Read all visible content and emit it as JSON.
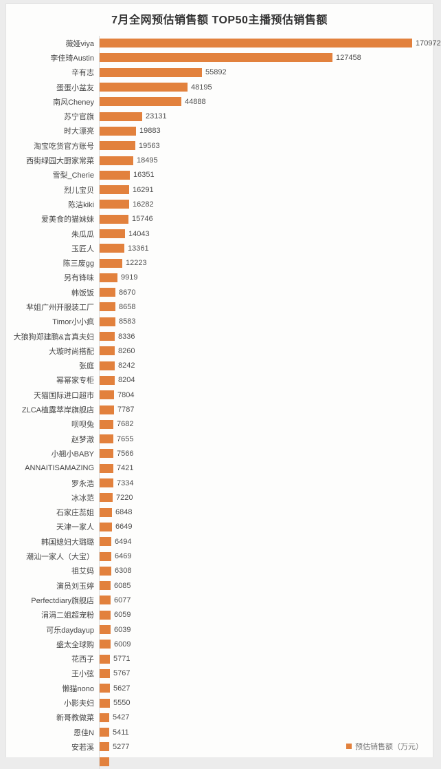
{
  "chart_data": {
    "type": "bar",
    "orientation": "horizontal",
    "title": "7月全网预估销售额 TOP50主播预估销售额",
    "legend": "预估销售额（万元）",
    "legend_position": "bottom-right",
    "unit": "万元",
    "bar_color": "#e2813d",
    "value_labels": "outside-end",
    "grid": false,
    "xlim": [
      0,
      175000
    ],
    "note_visible": "50th bar partially cut off at bottom edge",
    "categories": [
      "薇娅viya",
      "李佳琦Austin",
      "辛有志",
      "蛋蛋小盆友",
      "南风Cheney",
      "苏宁官旗",
      "时大漂亮",
      "淘宝吃货官方账号",
      "西街绿园大厨家常菜",
      "雪梨_Cherie",
      "烈儿宝贝",
      "陈洁kiki",
      "爱美食的猫妹妹",
      "朱瓜瓜",
      "玉匠人",
      "陈三废gg",
      "另有锋味",
      "韩饭饭",
      "芈姐广州开服装工厂",
      "Timor小小疯",
      "大狼狗郑建鹏&言真夫妇",
      "大璇时尚搭配",
      "张庭",
      "幂幂家专柜",
      "天猫国际进口超市",
      "ZLCA植露萃岸旗舰店",
      "呗呗兔",
      "赵梦澈",
      "小翘小BABY",
      "ANNAITISAMAZING",
      "罗永浩",
      "冰冰范",
      "石家庄蕊姐",
      "天津一家人",
      "韩国媳妇大璐璐",
      "潮汕一家人（大宝）",
      "祖艾妈",
      "演员刘玉婷",
      "Perfectdiary旗舰店",
      "涓涓二姐超宠粉",
      "可乐daydayup",
      "盛太全球购",
      "花西子",
      "王小弦",
      "懒猫nono",
      "小影夫妇",
      "新哥教做菜",
      "恩佳N",
      "安若溪"
    ],
    "values": [
      170972,
      127458,
      55892,
      48195,
      44888,
      23131,
      19883,
      19563,
      18495,
      16351,
      16291,
      16282,
      15746,
      14043,
      13361,
      12223,
      9919,
      8670,
      8658,
      8583,
      8336,
      8260,
      8242,
      8204,
      7804,
      7787,
      7682,
      7655,
      7566,
      7421,
      7334,
      7220,
      6848,
      6649,
      6494,
      6469,
      6308,
      6085,
      6077,
      6059,
      6039,
      6009,
      5771,
      5767,
      5627,
      5550,
      5427,
      5411,
      5277
    ],
    "partial_row_visible": true
  }
}
